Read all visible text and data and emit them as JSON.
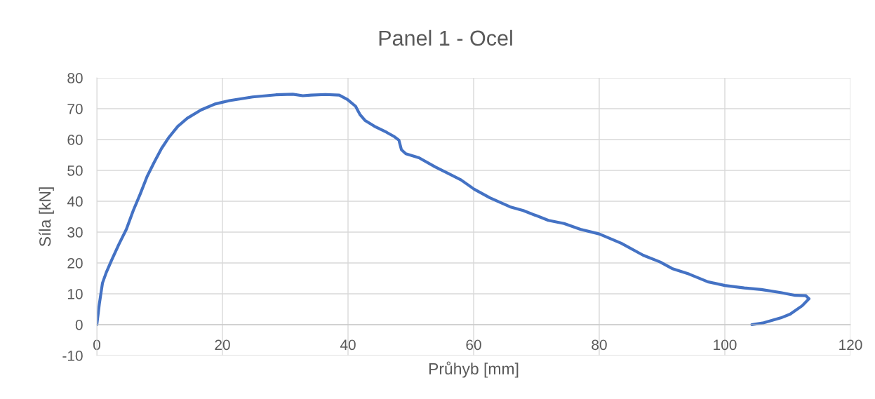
{
  "chart_data": {
    "type": "line",
    "title": "Panel 1 - Ocel",
    "xlabel": "Průhyb [mm]",
    "ylabel": "Síla [kN]",
    "xlim": [
      0,
      120
    ],
    "ylim": [
      -10,
      80
    ],
    "xticks": [
      0,
      20,
      40,
      60,
      80,
      100,
      120
    ],
    "yticks": [
      -10,
      0,
      10,
      20,
      30,
      40,
      50,
      60,
      70,
      80
    ],
    "grid": true,
    "line_style": "solid",
    "series": [
      {
        "color": "#4472c4",
        "x": [
          0,
          0.4,
          0.9,
          1.5,
          2.4,
          3.5,
          4.7,
          5.8,
          6.9,
          8.0,
          9.1,
          10.3,
          11.4,
          12.9,
          14.4,
          16.6,
          18.8,
          21.1,
          24.8,
          28.5,
          31.2,
          32.8,
          34.1,
          36.4,
          38.6,
          39.9,
          41.2,
          41.9,
          42.7,
          44.2,
          46.1,
          47.4,
          48.1,
          48.5,
          49.2,
          51.3,
          53.9,
          55.8,
          58.0,
          60.1,
          62.6,
          65.8,
          67.9,
          71.9,
          74.4,
          77.0,
          80.0,
          83.5,
          87.0,
          89.7,
          91.6,
          94.3,
          97.3,
          100.0,
          103.1,
          105.8,
          108.9,
          111.2,
          112.9,
          113.4,
          112.3,
          110.4,
          108.9,
          106.2,
          104.3
        ],
        "values": [
          0,
          6.7,
          13.5,
          16.9,
          21.1,
          26.0,
          30.9,
          37.0,
          42.3,
          48.0,
          52.5,
          57.1,
          60.5,
          64.3,
          66.9,
          69.6,
          71.5,
          72.6,
          73.8,
          74.5,
          74.7,
          74.2,
          74.4,
          74.6,
          74.4,
          73.0,
          70.8,
          68.1,
          66.2,
          64.3,
          62.4,
          60.9,
          59.8,
          56.7,
          55.4,
          54.1,
          51.1,
          49.2,
          46.9,
          43.9,
          41.1,
          38.2,
          37.0,
          33.8,
          32.8,
          30.9,
          29.4,
          26.4,
          22.5,
          20.3,
          18.2,
          16.4,
          13.9,
          12.7,
          11.9,
          11.4,
          10.4,
          9.5,
          9.4,
          8.4,
          6.1,
          3.4,
          2.2,
          0.6,
          0.0
        ]
      }
    ]
  }
}
